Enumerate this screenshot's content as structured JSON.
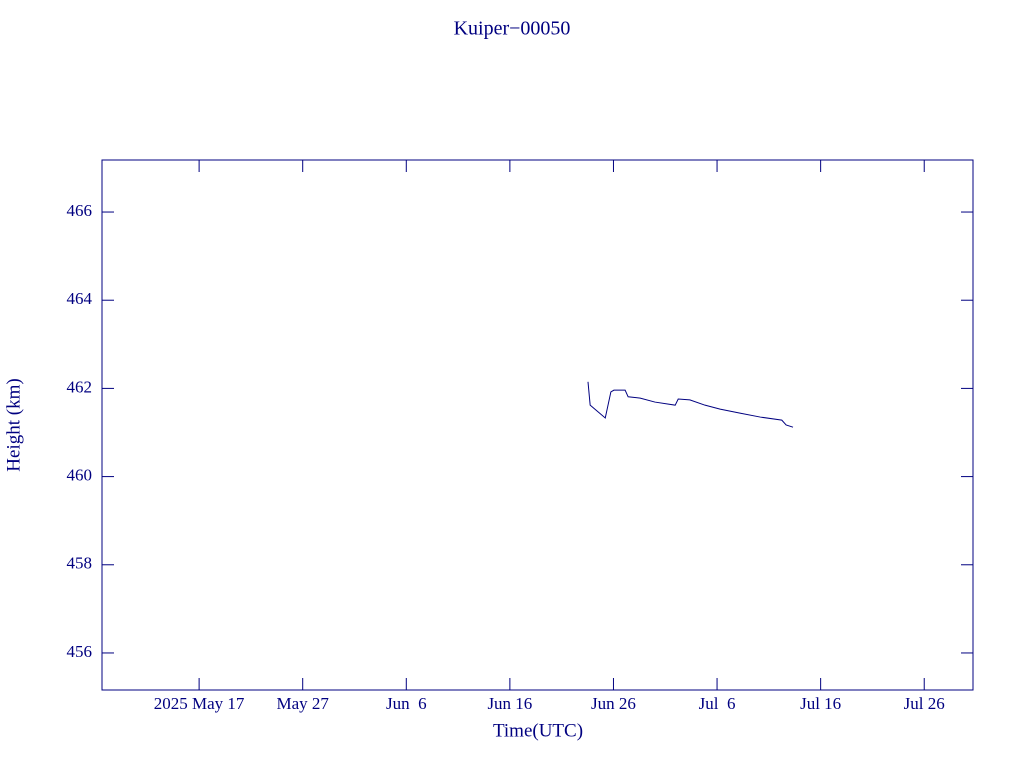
{
  "chart_data": {
    "type": "line",
    "title": "Kuiper−00050",
    "x_label": "Time(UTC)",
    "y_label": "Height (km)",
    "x": [
      "2025-06-23T13:00",
      "2025-06-23T18:00",
      "2025-06-25T05:00",
      "2025-06-25T18:00",
      "2025-06-26T01:00",
      "2025-06-27T03:00",
      "2025-06-27T10:00",
      "2025-06-28T14:00",
      "2025-06-30T00:00",
      "2025-07-01T23:00",
      "2025-07-02T06:00",
      "2025-07-03T09:00",
      "2025-07-04T20:00",
      "2025-07-06T07:00",
      "2025-07-08T05:00",
      "2025-07-10T04:00",
      "2025-07-12T06:00",
      "2025-07-12T16:00",
      "2025-07-13T08:00"
    ],
    "series": [
      {
        "color": "#000080",
        "values": [
          462.15,
          461.62,
          461.33,
          461.92,
          461.96,
          461.96,
          461.81,
          461.78,
          461.69,
          461.62,
          461.76,
          461.74,
          461.62,
          461.53,
          461.44,
          461.35,
          461.28,
          461.17,
          461.12
        ]
      }
    ],
    "xlim": [
      "2025-05-07T15:00",
      "2025-07-30T17:00"
    ],
    "xticks": [
      {
        "value": "2025-05-17",
        "label": "2025 May 17"
      },
      {
        "value": "2025-05-27",
        "label": "May 27"
      },
      {
        "value": "2025-06-06",
        "label": "Jun  6"
      },
      {
        "value": "2025-06-16",
        "label": "Jun 16"
      },
      {
        "value": "2025-06-26",
        "label": "Jun 26"
      },
      {
        "value": "2025-07-06",
        "label": "Jul  6"
      },
      {
        "value": "2025-07-16",
        "label": "Jul 16"
      },
      {
        "value": "2025-07-26",
        "label": "Jul 26"
      }
    ],
    "ylim": [
      455.16,
      467.18
    ],
    "yticks": [
      456,
      458,
      460,
      462,
      464,
      466
    ],
    "grid": false
  }
}
